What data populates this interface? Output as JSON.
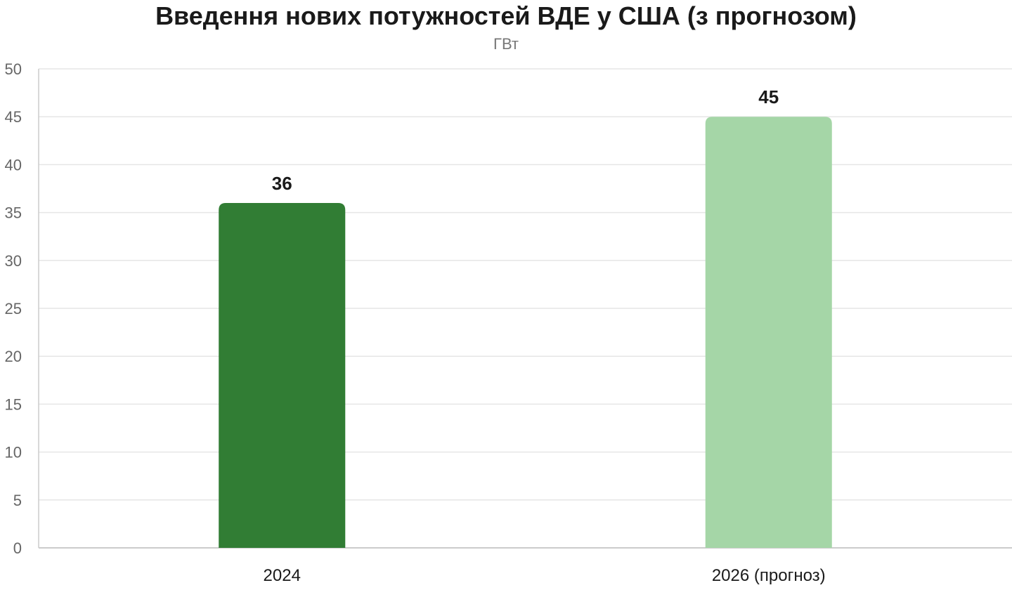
{
  "chart_data": {
    "type": "bar",
    "title": "Введення нових потужностей ВДЕ у США (з прогнозом)",
    "subtitle": "ГВт",
    "xlabel": "",
    "ylabel": "",
    "categories": [
      "2024",
      "2026 (прогноз)"
    ],
    "values": [
      36,
      45
    ],
    "data_labels": [
      "36",
      "45"
    ],
    "bar_colors": [
      "#317d34",
      "#a5d6a7"
    ],
    "ylim": [
      0,
      50
    ],
    "y_ticks": [
      0,
      5,
      10,
      15,
      20,
      25,
      30,
      35,
      40,
      45,
      50
    ],
    "grid": true,
    "legend": "none",
    "colors": {
      "grid": "#e6e6e6",
      "axis": "#cccccc"
    }
  }
}
